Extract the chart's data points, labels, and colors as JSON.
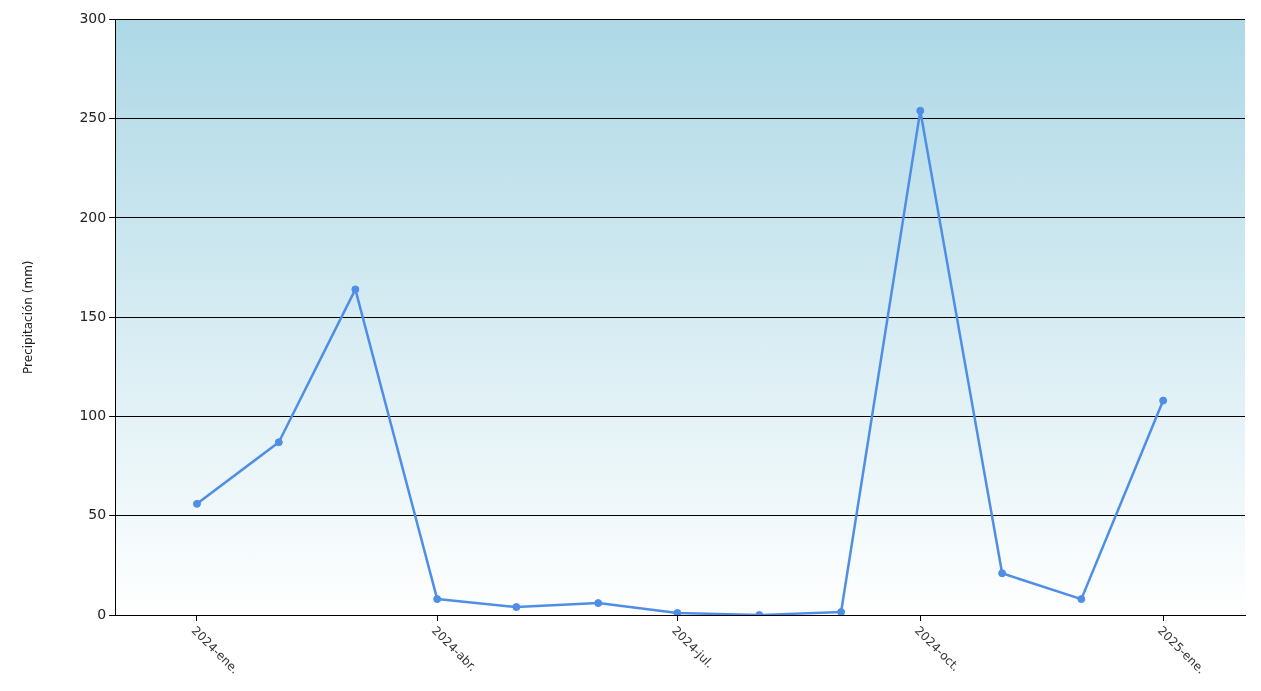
{
  "chart_data": {
    "type": "line",
    "ylabel": "Precipitación (mm)",
    "x": [
      "2024-01",
      "2024-02",
      "2024-03",
      "2024-04",
      "2024-05",
      "2024-06",
      "2024-07",
      "2024-08",
      "2024-09",
      "2024-10",
      "2024-11",
      "2024-12",
      "2025-01"
    ],
    "series": [
      {
        "color": "#4f8ee6",
        "values": [
          56,
          87,
          164,
          8,
          4,
          6,
          1,
          0,
          1.5,
          254,
          21,
          8,
          108
        ]
      }
    ],
    "xlim": [
      "2023-12",
      "2025-02"
    ],
    "xticks": [
      {
        "value": "2024-01",
        "label": "2024-ene."
      },
      {
        "value": "2024-04",
        "label": "2024-abr."
      },
      {
        "value": "2024-07",
        "label": "2024-jul."
      },
      {
        "value": "2024-10",
        "label": "2024-oct."
      },
      {
        "value": "2025-01",
        "label": "2025-ene."
      }
    ],
    "ylim": [
      0,
      300
    ],
    "yticks": [
      0,
      50,
      100,
      150,
      200,
      250,
      300
    ],
    "grid": "y",
    "legend": false,
    "marker": "circle",
    "line_style": "solid"
  }
}
